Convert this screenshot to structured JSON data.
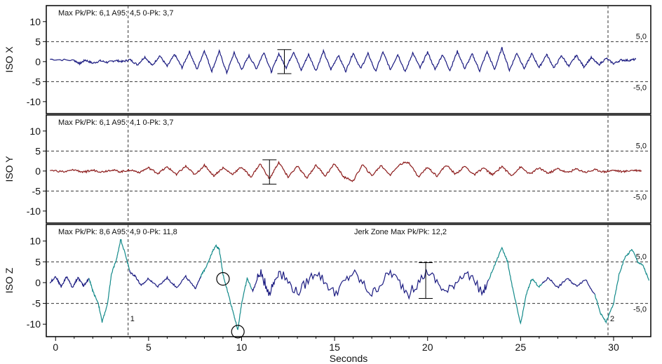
{
  "chart_data": {
    "type": "line",
    "xlabel": "Seconds",
    "xlim": [
      -0.5,
      32
    ],
    "xticks": [
      0,
      5,
      10,
      15,
      20,
      25,
      30
    ],
    "markers": [
      {
        "label": "1",
        "x": 3.9
      },
      {
        "label": "2",
        "x": 29.7
      }
    ],
    "panels": [
      {
        "ylabel": "ISO X",
        "ylim": [
          -13,
          14
        ],
        "yticks": [
          -10,
          -5,
          0,
          5,
          10
        ],
        "limit_lines": [
          5,
          -5
        ],
        "limit_labels": [
          "5,0",
          "-5,0"
        ],
        "stats": "Max Pk/Pk: 6,1  A95: 4,5  0-Pk: 3,7",
        "color": "#1a1a80",
        "series": [
          {
            "name": "ISO X",
            "x": [
              -0.3,
              1.0,
              1.3,
              1.6,
              2.0,
              2.4,
              2.8,
              3.2,
              3.6,
              4.0,
              4.4,
              4.8,
              5.2,
              5.6,
              6.0,
              6.4,
              6.8,
              7.2,
              7.6,
              8.0,
              8.4,
              8.8,
              9.2,
              9.6,
              10.0,
              10.4,
              10.8,
              11.2,
              11.6,
              12.0,
              12.4,
              12.8,
              13.2,
              13.6,
              14.0,
              14.4,
              14.8,
              15.2,
              15.6,
              16.0,
              16.4,
              16.8,
              17.2,
              17.6,
              18.0,
              18.4,
              18.8,
              19.2,
              19.6,
              20.0,
              20.4,
              20.8,
              21.2,
              21.6,
              22.0,
              22.4,
              22.8,
              23.2,
              23.6,
              24.0,
              24.4,
              24.8,
              25.2,
              25.6,
              26.0,
              26.4,
              26.8,
              27.2,
              27.6,
              28.0,
              28.4,
              28.8,
              29.2,
              29.6,
              30.0,
              30.4,
              30.8,
              31.2
            ],
            "y": [
              0.6,
              0.3,
              -0.5,
              0.4,
              -0.4,
              0.2,
              -0.2,
              0.3,
              0.0,
              0.5,
              -0.8,
              1.2,
              -1.0,
              1.5,
              -1.2,
              1.8,
              -1.5,
              2.5,
              -2.0,
              2.8,
              -2.4,
              2.6,
              -2.8,
              2.2,
              -2.0,
              1.5,
              -1.8,
              2.4,
              -2.6,
              2.0,
              -1.5,
              2.5,
              -2.2,
              1.8,
              -2.3,
              2.6,
              -2.0,
              1.6,
              -2.4,
              2.2,
              -1.8,
              2.0,
              -2.5,
              2.4,
              -2.0,
              1.8,
              -2.6,
              2.2,
              -1.6,
              2.4,
              -2.0,
              1.8,
              -2.2,
              2.6,
              -1.8,
              1.9,
              -2.3,
              2.5,
              -2.0,
              3.4,
              -2.2,
              2.2,
              -1.8,
              2.0,
              -1.5,
              1.8,
              -1.6,
              1.5,
              -1.2,
              1.6,
              -1.3,
              1.0,
              -0.8,
              0.8,
              -0.5,
              0.4,
              0.3,
              0.6
            ]
          }
        ]
      },
      {
        "ylabel": "ISO Y",
        "ylim": [
          -13,
          14
        ],
        "yticks": [
          -10,
          -5,
          0,
          5,
          10
        ],
        "limit_lines": [
          5,
          -5
        ],
        "limit_labels": [
          "5,0",
          "-5,0"
        ],
        "stats": "Max Pk/Pk: 6,1  A95: 4,1  0-Pk: 3,7",
        "color": "#8b1a1a",
        "series": [
          {
            "name": "ISO Y",
            "x": [
              -0.3,
              0.5,
              1.0,
              1.5,
              2.0,
              2.5,
              3.0,
              3.5,
              4.0,
              4.5,
              5.0,
              5.5,
              6.0,
              6.5,
              7.0,
              7.5,
              8.0,
              8.5,
              9.0,
              9.5,
              10.0,
              10.5,
              11.0,
              11.5,
              12.0,
              12.5,
              13.0,
              13.5,
              14.0,
              14.5,
              15.0,
              15.5,
              16.0,
              16.5,
              17.0,
              17.5,
              18.0,
              18.5,
              19.0,
              19.5,
              20.0,
              20.5,
              21.0,
              21.5,
              22.0,
              22.5,
              23.0,
              23.5,
              24.0,
              24.5,
              25.0,
              25.5,
              26.0,
              26.5,
              27.0,
              27.5,
              28.0,
              28.5,
              29.0,
              29.5,
              30.0,
              30.5,
              31.0,
              31.5
            ],
            "y": [
              0.2,
              -0.2,
              0.3,
              -0.3,
              0.2,
              -0.2,
              0.3,
              -0.2,
              0.3,
              -0.3,
              0.8,
              -0.6,
              1.0,
              -0.8,
              1.2,
              -1.0,
              1.5,
              -1.2,
              0.8,
              -0.8,
              1.0,
              -1.5,
              1.8,
              -2.0,
              2.2,
              -1.5,
              1.2,
              -1.8,
              1.5,
              -1.2,
              1.8,
              -1.5,
              -2.5,
              1.6,
              -1.2,
              1.4,
              -1.0,
              1.8,
              2.2,
              -1.5,
              1.0,
              -1.2,
              1.5,
              -0.8,
              1.2,
              -1.0,
              0.8,
              -1.0,
              1.2,
              -1.2,
              1.0,
              -0.8,
              0.8,
              -0.6,
              0.6,
              -0.4,
              0.5,
              -0.3,
              0.3,
              -0.2,
              0.2,
              -0.2,
              0.2,
              0.1
            ]
          }
        ]
      },
      {
        "ylabel": "ISO Z",
        "ylim": [
          -13,
          14
        ],
        "yticks": [
          -10,
          -5,
          0,
          5,
          10
        ],
        "limit_lines": [
          5,
          -5
        ],
        "limit_labels": [
          "5,0",
          "-5,0"
        ],
        "stats": "Max Pk/Pk: 8,6  A95: 4,9  0-Pk: 11,8",
        "jerk_label": "Jerk Zone Max Pk/Pk: 12,2",
        "color": "#1a1a80",
        "jerk_color": "#138a8a",
        "series": [
          {
            "name": "ISO Z",
            "x": [
              -0.3,
              0.0,
              0.3,
              0.6,
              0.9,
              1.2,
              1.5,
              1.8,
              2.0,
              2.3,
              2.5,
              2.8,
              3.0,
              3.3,
              3.5,
              3.8,
              4.0,
              4.3,
              4.6,
              5.0,
              5.5,
              6.0,
              6.5,
              7.0,
              7.5,
              7.8,
              8.0,
              8.3,
              8.6,
              8.8,
              9.0,
              9.3,
              9.6,
              9.8,
              10.0,
              10.3,
              10.6,
              11.0,
              11.5,
              12.0,
              13.0,
              14.0,
              15.0,
              16.0,
              17.0,
              18.0,
              19.0,
              20.0,
              21.0,
              22.0,
              23.0,
              23.5,
              24.0,
              24.3,
              24.6,
              25.0,
              25.3,
              25.6,
              26.0,
              26.5,
              27.0,
              27.5,
              28.0,
              28.5,
              29.0,
              29.3,
              29.6,
              30.0,
              30.3,
              30.6,
              31.0,
              31.3,
              31.6,
              31.9
            ],
            "y": [
              0.0,
              1.5,
              -1.0,
              1.5,
              -1.2,
              1.2,
              -0.8,
              1.0,
              -2.0,
              -5.0,
              -9.5,
              -5.0,
              2.0,
              6.0,
              10.5,
              6.0,
              2.5,
              1.5,
              -0.8,
              1.0,
              -1.0,
              1.2,
              -1.2,
              1.5,
              -1.5,
              1.5,
              3.0,
              6.0,
              9.0,
              8.0,
              2.0,
              -3.0,
              -8.0,
              -11.5,
              -5.0,
              1.0,
              -2.0,
              2.5,
              -2.5,
              2.8,
              -2.5,
              2.8,
              -2.6,
              2.5,
              -2.8,
              2.6,
              -2.7,
              2.8,
              -2.5,
              2.6,
              -2.4,
              3.0,
              8.5,
              5.0,
              -2.0,
              -10.0,
              -3.0,
              1.0,
              -1.0,
              1.2,
              -1.2,
              1.0,
              -0.8,
              0.8,
              -3.0,
              -7.5,
              -9.5,
              -5.0,
              2.0,
              6.0,
              8.0,
              5.0,
              4.0,
              0.5
            ]
          }
        ]
      }
    ],
    "annotations": [
      {
        "panel": 0,
        "type": "crosshair",
        "x": 12.3,
        "y": [
          3.0,
          -3.0
        ]
      },
      {
        "panel": 1,
        "type": "crosshair",
        "x": 11.5,
        "y": [
          2.8,
          -3.3
        ]
      },
      {
        "panel": 2,
        "type": "circle",
        "x": 9.0,
        "y": 0.9
      },
      {
        "panel": 2,
        "type": "circle",
        "x": 9.8,
        "y": -11.8
      },
      {
        "panel": 2,
        "type": "crosshair",
        "x": 19.9,
        "y": [
          4.8,
          -3.8
        ]
      }
    ]
  }
}
